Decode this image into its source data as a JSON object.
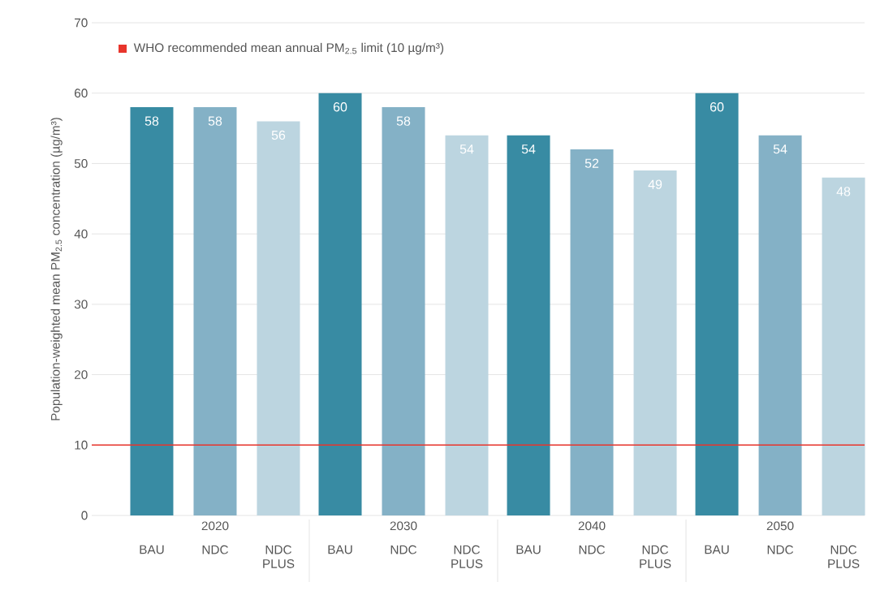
{
  "chart_data": {
    "type": "bar",
    "categories": [
      "2020",
      "2030",
      "2040",
      "2050"
    ],
    "series": [
      {
        "name": "BAU",
        "color": "#388ba3",
        "values": [
          58,
          60,
          54,
          60
        ]
      },
      {
        "name": "NDC",
        "color": "#84b1c6",
        "values": [
          58,
          58,
          52,
          54
        ]
      },
      {
        "name": "NDC PLUS",
        "color": "#bcd5e0",
        "values": [
          56,
          54,
          49,
          48
        ]
      }
    ],
    "ylabel": "Population-weighted mean PM$_{2.5}$ concentration (µg/m³)",
    "ylim": [
      0,
      70
    ],
    "yticks": [
      0,
      10,
      20,
      30,
      40,
      50,
      60,
      70
    ],
    "grid": "y",
    "data_labels": true,
    "ref_lines": [
      {
        "axis": "y",
        "value": 10,
        "label": "WHO recommended mean annual PM$_{2.5}$ limit (10 µg/m³)",
        "color": "#e8352c"
      }
    ]
  }
}
